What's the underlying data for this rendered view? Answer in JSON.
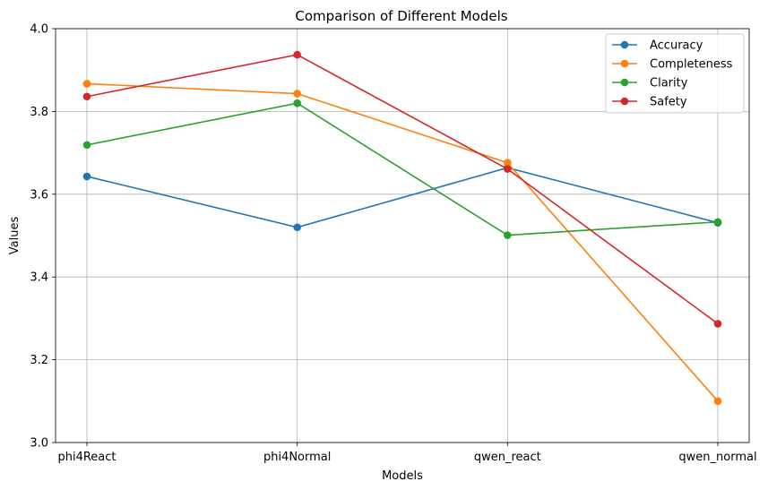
{
  "chart_data": {
    "type": "line",
    "title": "Comparison of Different Models",
    "xlabel": "Models",
    "ylabel": "Values",
    "categories": [
      "phi4React",
      "phi4Normal",
      "qwen_react",
      "qwen_normal"
    ],
    "ylim": [
      3.0,
      4.0
    ],
    "yticks": [
      "3.0",
      "3.2",
      "3.4",
      "3.6",
      "3.8",
      "4.0"
    ],
    "grid": true,
    "legend_position": "top-right",
    "series": [
      {
        "name": "Accuracy",
        "color": "#1f77b4",
        "values": [
          3.643,
          3.52,
          3.664,
          3.531
        ]
      },
      {
        "name": "Completeness",
        "color": "#ff7f0e",
        "values": [
          3.867,
          3.843,
          3.676,
          3.1
        ]
      },
      {
        "name": "Clarity",
        "color": "#2ca02c",
        "values": [
          3.719,
          3.82,
          3.501,
          3.533
        ]
      },
      {
        "name": "Safety",
        "color": "#d62728",
        "values": [
          3.836,
          3.937,
          3.661,
          3.287
        ]
      }
    ]
  }
}
